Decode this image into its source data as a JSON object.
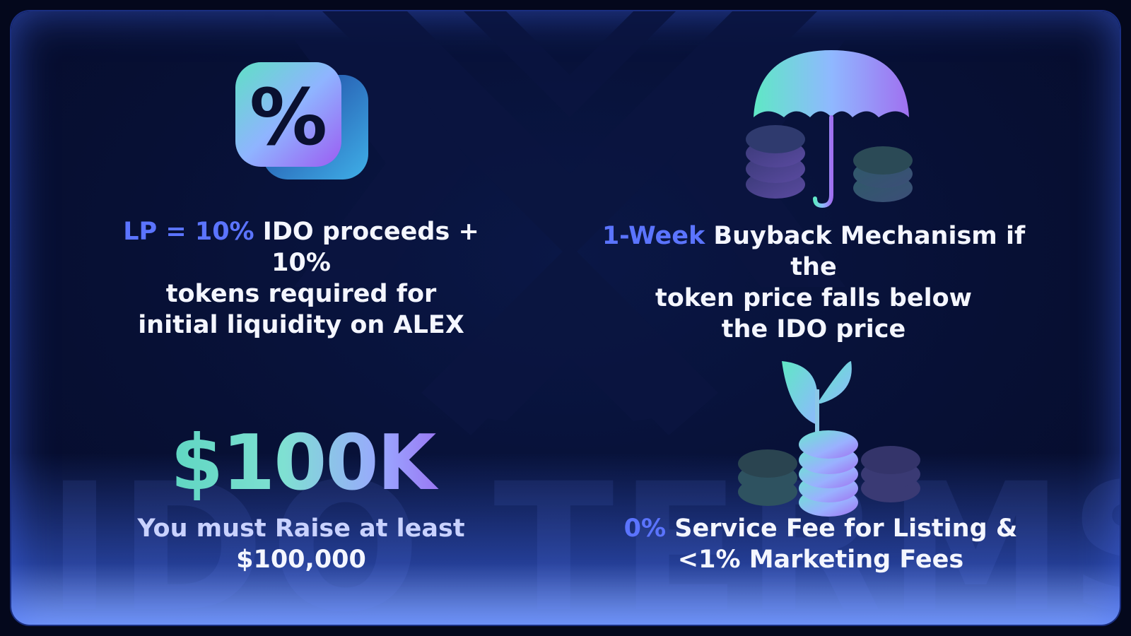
{
  "watermark": "IDO TERMS",
  "tiles": {
    "lp": {
      "accent": "LP = 10%",
      "line1_rest": " IDO proceeds + 10%",
      "line2": "tokens required for",
      "line3": "initial liquidity on ALEX"
    },
    "buyback": {
      "accent": "1-Week",
      "line1_rest": " Buyback Mechanism if the",
      "line2": "token price falls below",
      "line3": "the IDO price"
    },
    "raise": {
      "amount": "$100K",
      "line1": "You must Raise at least",
      "line2": "$100,000"
    },
    "fees": {
      "accent": "0%",
      "line1_rest": " Service Fee for Listing &",
      "line2": "<1% Marketing Fees"
    }
  },
  "icons": [
    "percent-icon",
    "umbrella-coins-icon",
    "plant-coins-icon"
  ],
  "colors": {
    "background": "#060c2a",
    "accent": "#5b74ff",
    "teal": "#5fd6c2",
    "purple": "#9a6cf0",
    "text": "#f4f6ff"
  }
}
